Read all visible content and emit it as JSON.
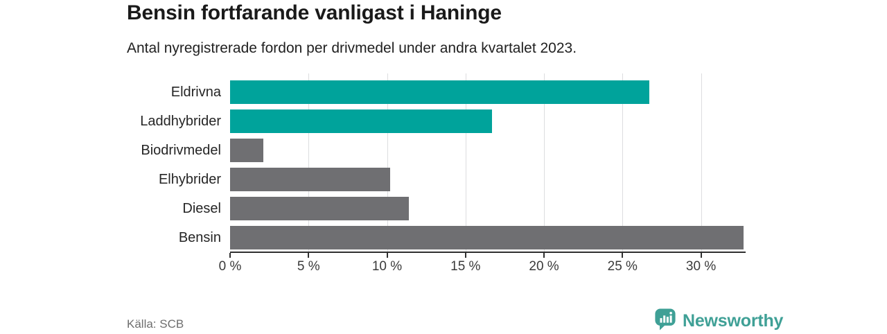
{
  "header": {
    "title": "Bensin fortfarande vanligast i Haninge",
    "subtitle": "Antal nyregistrerade fordon per drivmedel under andra kvartalet 2023."
  },
  "chart_data": {
    "type": "bar",
    "orientation": "horizontal",
    "title": "Bensin fortfarande vanligast i Haninge",
    "subtitle": "Antal nyregistrerade fordon per drivmedel under andra kvartalet 2023.",
    "unit": "%",
    "categories": [
      "Eldrivna",
      "Laddhybrider",
      "Biodrivmedel",
      "Elhybrider",
      "Diesel",
      "Bensin"
    ],
    "values": [
      26.7,
      16.7,
      2.1,
      10.2,
      11.4,
      32.7
    ],
    "bar_colors": [
      "#00a39b",
      "#00a39b",
      "#6f6f72",
      "#6f6f72",
      "#6f6f72",
      "#6f6f72"
    ],
    "highlight_color": "#00a39b",
    "default_color": "#6f6f72",
    "xlim": [
      0,
      32.8
    ],
    "xticks": [
      {
        "value": 0,
        "label": "0 %"
      },
      {
        "value": 5,
        "label": "5 %"
      },
      {
        "value": 10,
        "label": "10 %"
      },
      {
        "value": 15,
        "label": "15 %"
      },
      {
        "value": 20,
        "label": "20 %"
      },
      {
        "value": 25,
        "label": "25 %"
      },
      {
        "value": 30,
        "label": "30 %"
      }
    ],
    "grid": "vertical",
    "legend": "none"
  },
  "footer": {
    "source": "Källa: SCB",
    "brand": "Newsworthy"
  },
  "colors": {
    "accent_teal": "#00a39b",
    "bar_gray": "#6f6f72",
    "gridline": "#dcdddf",
    "axis": "#2f2f2f",
    "brand_teal": "#3fa096"
  }
}
